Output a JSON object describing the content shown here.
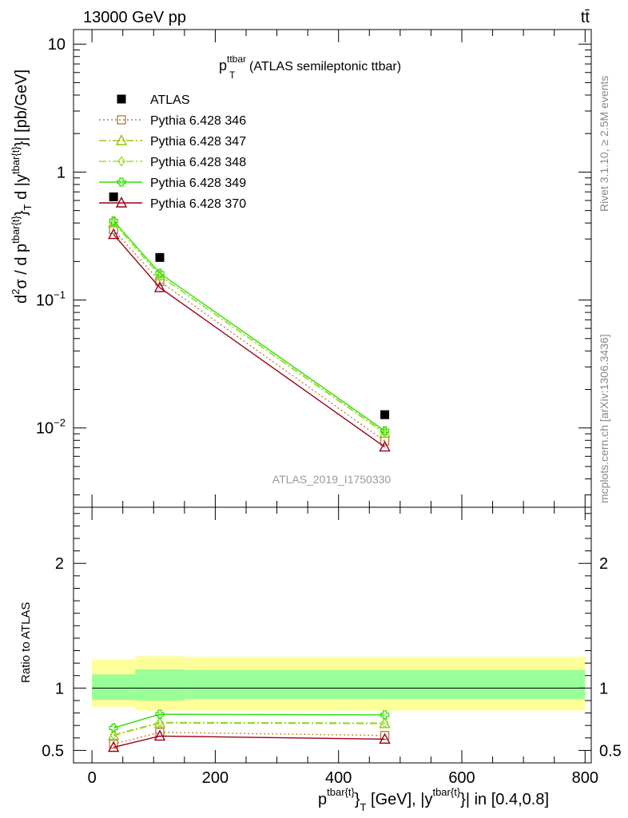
{
  "header": {
    "left": "13000 GeV pp",
    "right": "tt̄"
  },
  "side_labels": {
    "rivet": "Rivet 3.1.10, ≥ 2.5M events",
    "mcplots": "mcplots.cern.ch [arXiv:1306.3436]"
  },
  "chart_data": [
    {
      "type": "line",
      "title_main": "p",
      "title_sup": "ttbar",
      "title_sub": "T",
      "title_rest": "(ATLAS semileptonic ttbar)",
      "ylabel": "d²σ / d p^{tbar{t}}_T d |y^{tbar{t}}| [pb/GeV]",
      "ylabel_parts": {
        "a": "d",
        "a_sup": "2",
        "b": "σ / d p",
        "b_sup": "tbar{t}",
        "c": "}",
        "c_sub": "T",
        "d": " d |y",
        "d_sup": "tbar{t}",
        "e": "}| [pb/GeV]"
      },
      "yscale": "log",
      "ylim": [
        0.0024,
        13
      ],
      "xlim": [
        -30,
        810
      ],
      "ytick_labels": [
        {
          "value": 10,
          "base": "10",
          "exp": ""
        },
        {
          "value": 1,
          "base": "1",
          "exp": ""
        },
        {
          "value": 0.1,
          "base": "10",
          "exp": "−1"
        },
        {
          "value": 0.01,
          "base": "10",
          "exp": "−2"
        }
      ],
      "watermark": "ATLAS_2019_I1750330",
      "legend_position": "top-left",
      "x": [
        35,
        110,
        475
      ],
      "series": [
        {
          "name": "ATLAS",
          "values": [
            0.64,
            0.215,
            0.0127
          ],
          "color": "#000000",
          "marker": "square",
          "line": "none"
        },
        {
          "name": "Pythia 6.428 346",
          "values": [
            0.355,
            0.14,
            0.0079
          ],
          "color": "#b8843c",
          "marker": "open-square",
          "line": "dotted"
        },
        {
          "name": "Pythia 6.428 347",
          "values": [
            0.4,
            0.155,
            0.0091
          ],
          "color": "#9ac30a",
          "marker": "open-triangle",
          "line": "dashdot"
        },
        {
          "name": "Pythia 6.428 348",
          "values": [
            0.4,
            0.155,
            0.0092
          ],
          "color": "#94e22a",
          "marker": "open-diamond",
          "line": "dashdot"
        },
        {
          "name": "Pythia 6.428 349",
          "values": [
            0.415,
            0.162,
            0.0095
          ],
          "color": "#33dd00",
          "marker": "open-cross",
          "line": "solid"
        },
        {
          "name": "Pythia 6.428 370",
          "values": [
            0.325,
            0.125,
            0.0071
          ],
          "color": "#990018",
          "marker": "open-triangle",
          "line": "solid"
        }
      ]
    },
    {
      "type": "line",
      "ylabel": "Ratio to ATLAS",
      "xlabel_parts": {
        "a": "p",
        "a_sup": "tbar{t}",
        "b": "}",
        "b_sub": "T",
        "c": " [GeV], |y",
        "c_sup": "tbar{t}",
        "d": "}| in [0.4,0.8]"
      },
      "ylim": [
        0.4,
        2.45
      ],
      "xlim": [
        -30,
        810
      ],
      "x_ticks": [
        0,
        200,
        400,
        600,
        800
      ],
      "y_ticks": [
        0.5,
        1,
        2
      ],
      "y_tick_labels": [
        "0.5",
        "1",
        "2"
      ],
      "bins": [
        [
          0,
          70
        ],
        [
          70,
          150
        ],
        [
          150,
          800
        ]
      ],
      "band_total": [
        [
          0.85,
          1.23
        ],
        [
          0.82,
          1.255
        ],
        [
          0.82,
          1.25
        ]
      ],
      "band_stat": [
        [
          0.905,
          1.11
        ],
        [
          0.9,
          1.15
        ],
        [
          0.91,
          1.145
        ]
      ],
      "band_colors": {
        "total": "#ffff99",
        "stat": "#99ff99"
      },
      "x": [
        35,
        110,
        475
      ],
      "series": [
        {
          "name": "Pythia 6.428 346",
          "values": [
            0.55,
            0.645,
            0.62
          ],
          "color": "#b8843c",
          "marker": "open-square",
          "line": "dotted"
        },
        {
          "name": "Pythia 6.428 347",
          "values": [
            0.62,
            0.72,
            0.715
          ],
          "color": "#9ac30a",
          "marker": "open-triangle",
          "line": "dashdot"
        },
        {
          "name": "Pythia 6.428 348",
          "values": [
            0.625,
            0.725,
            0.72
          ],
          "color": "#94e22a",
          "marker": "open-diamond",
          "line": "dashdot"
        },
        {
          "name": "Pythia 6.428 349",
          "values": [
            0.68,
            0.79,
            0.785
          ],
          "color": "#33dd00",
          "marker": "open-cross",
          "line": "solid"
        },
        {
          "name": "Pythia 6.428 370",
          "values": [
            0.525,
            0.615,
            0.59
          ],
          "color": "#990018",
          "marker": "open-triangle",
          "line": "solid"
        }
      ]
    }
  ]
}
